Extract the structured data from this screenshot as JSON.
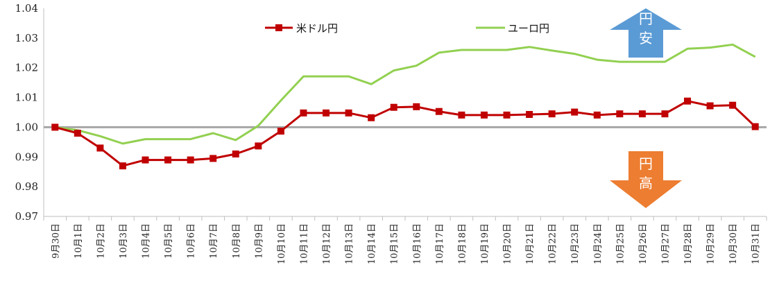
{
  "chart_data": {
    "type": "line",
    "title": "",
    "xlabel": "",
    "ylabel": "",
    "ylim": [
      0.97,
      1.04
    ],
    "y_ticks": [
      "1.04",
      "1.03",
      "1.02",
      "1.01",
      "1.00",
      "0.99",
      "0.98",
      "0.97"
    ],
    "categories": [
      "9月30日",
      "10月1日",
      "10月2日",
      "10月3日",
      "10月4日",
      "10月5日",
      "10月6日",
      "10月7日",
      "10月8日",
      "10月9日",
      "10月10日",
      "10月11日",
      "10月12日",
      "10月13日",
      "10月14日",
      "10月15日",
      "10月16日",
      "10月17日",
      "10月18日",
      "10月19日",
      "10月20日",
      "10月21日",
      "10月22日",
      "10月23日",
      "10月24日",
      "10月25日",
      "10月26日",
      "10月27日",
      "10月28日",
      "10月29日",
      "10月30日",
      "10月31日"
    ],
    "series": [
      {
        "name": "米ドル円",
        "color": "#c00000",
        "marker": "square",
        "values": [
          1.0,
          0.998,
          0.993,
          0.987,
          0.989,
          0.989,
          0.989,
          0.9895,
          0.991,
          0.9937,
          0.9987,
          1.0048,
          1.0048,
          1.0048,
          1.0032,
          1.0067,
          1.0069,
          1.0053,
          1.0041,
          1.0041,
          1.0041,
          1.0043,
          1.0045,
          1.0051,
          1.0041,
          1.0045,
          1.0045,
          1.0045,
          1.0088,
          1.0072,
          1.0074,
          1.0002
        ]
      },
      {
        "name": "ユーロ円",
        "color": "#92d050",
        "marker": "none",
        "values": [
          1.0,
          0.999,
          0.997,
          0.9945,
          0.996,
          0.996,
          0.996,
          0.998,
          0.9957,
          1.0005,
          1.009,
          1.0171,
          1.0171,
          1.0171,
          1.0145,
          1.0191,
          1.0207,
          1.0251,
          1.026,
          1.026,
          1.026,
          1.027,
          1.0258,
          1.0247,
          1.0227,
          1.022,
          1.022,
          1.022,
          1.0264,
          1.0268,
          1.0278,
          1.0237
        ]
      }
    ],
    "reference_line": {
      "value": 1.0,
      "color": "#a6a6a6"
    },
    "grid": false,
    "legend_position": "top"
  },
  "annotations": {
    "up_arrow": {
      "label_line1": "円",
      "label_line2": "安",
      "color": "#5b9bd5"
    },
    "down_arrow": {
      "label_line1": "円",
      "label_line2": "高",
      "color": "#ed7d31"
    }
  }
}
